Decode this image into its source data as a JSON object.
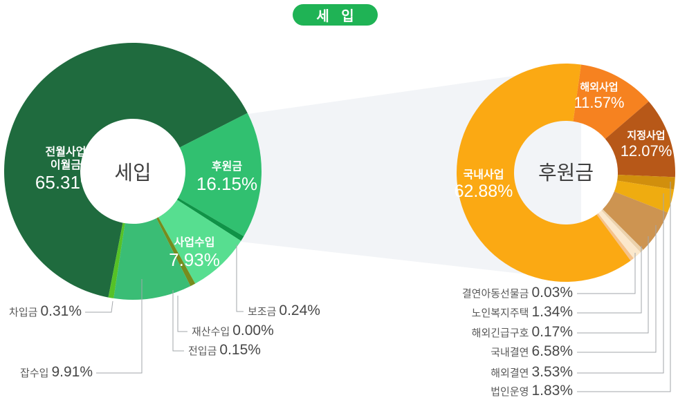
{
  "title": {
    "text": "세 입"
  },
  "colors": {
    "badge_green": "#1FB355",
    "band_gray": "#F2F4F7",
    "leader_gray": "#A2A6AA",
    "callout_name": "#585858",
    "callout_pct": "#474747",
    "center_text": "#404040"
  },
  "chart_data": [
    {
      "type": "pie",
      "subtype": "donut",
      "name": "세입",
      "center_label": "세입",
      "start_angle_deg": 191,
      "direction": "clockwise",
      "slices": [
        {
          "label": "전월사업 이월금",
          "value": 65.31,
          "color": "#1F6B3E"
        },
        {
          "label": "후원금",
          "value": 16.15,
          "color": "#31C070"
        },
        {
          "label": "보조금",
          "value": 0.24,
          "color": "#0F9347"
        },
        {
          "label": "사업수입",
          "value": 7.93,
          "color": "#57DE90"
        },
        {
          "label": "재산수입",
          "value": 0.0,
          "color": "#7C8D20"
        },
        {
          "label": "전입금",
          "value": 0.15,
          "color": "#768C1E"
        },
        {
          "label": "잡수입",
          "value": 9.91,
          "color": "#3ABD75"
        },
        {
          "label": "차입금",
          "value": 0.31,
          "color": "#55C127"
        }
      ]
    },
    {
      "type": "pie",
      "subtype": "donut",
      "name": "후원금",
      "center_label": "후원금",
      "start_angle_deg": 8,
      "direction": "clockwise",
      "slices": [
        {
          "label": "해외사업",
          "value": 11.57,
          "color": "#F68220"
        },
        {
          "label": "지정사업",
          "value": 12.07,
          "color": "#B75818"
        },
        {
          "label": "법인운영",
          "value": 1.83,
          "color": "#D18F0D"
        },
        {
          "label": "해외결연",
          "value": 3.53,
          "color": "#EFAC10"
        },
        {
          "label": "국내결연",
          "value": 6.58,
          "color": "#CD9451"
        },
        {
          "label": "해외긴급구호",
          "value": 0.17,
          "color": "#EBD2AC"
        },
        {
          "label": "노인복지주택",
          "value": 1.34,
          "color": "#FBE8CC"
        },
        {
          "label": "결연아동선물금",
          "value": 0.03,
          "color": "#F5C28B"
        },
        {
          "label": "국내사업",
          "value": 62.88,
          "color": "#FBA913"
        }
      ]
    }
  ]
}
